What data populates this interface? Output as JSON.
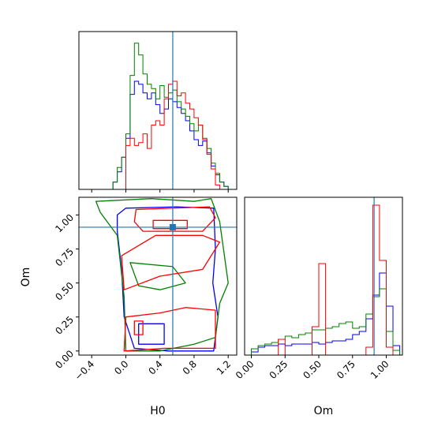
{
  "chart_data": {
    "type": "corner",
    "parameters": [
      "H0",
      "Om"
    ],
    "truth": {
      "H0": 0.55,
      "Om": 0.91
    },
    "colors": {
      "blue": "#0000ff",
      "green": "#008000",
      "red": "#ff0000",
      "truth": "#1f77b4"
    },
    "panels": [
      {
        "id": "h0-hist",
        "type": "histogram",
        "xlim": [
          -0.55,
          1.3
        ],
        "edges": [
          -0.45,
          -0.4,
          -0.35,
          -0.3,
          -0.25,
          -0.2,
          -0.15,
          -0.1,
          -0.05,
          0.0,
          0.05,
          0.1,
          0.15,
          0.2,
          0.25,
          0.3,
          0.35,
          0.4,
          0.45,
          0.5,
          0.55,
          0.6,
          0.65,
          0.7,
          0.75,
          0.8,
          0.85,
          0.9,
          0.95,
          1.0,
          1.05,
          1.1,
          1.15,
          1.2,
          1.25
        ],
        "series": [
          {
            "color": "blue",
            "counts": [
              0,
              0,
              0,
              0,
              0,
              0,
              0.05,
              0.12,
              0.22,
              0.35,
              0.65,
              0.74,
              0.72,
              0.66,
              0.62,
              0.66,
              0.58,
              0.52,
              0.55,
              0.62,
              0.6,
              0.56,
              0.52,
              0.47,
              0.4,
              0.34,
              0.3,
              0.33,
              0.25,
              0.16,
              0.1,
              0.05,
              0.02,
              0
            ]
          },
          {
            "color": "green",
            "counts": [
              0,
              0,
              0,
              0,
              0,
              0,
              0.05,
              0.15,
              0.22,
              0.38,
              0.78,
              1.0,
              0.92,
              0.79,
              0.72,
              0.69,
              0.62,
              0.71,
              0.63,
              0.66,
              0.68,
              0.6,
              0.55,
              0.5,
              0.45,
              0.4,
              0.44,
              0.35,
              0.28,
              0.18,
              0.11,
              0.05,
              0.02,
              0
            ]
          },
          {
            "color": "red",
            "counts": [
              0,
              0,
              0,
              0,
              0,
              0,
              0,
              0,
              0,
              0.3,
              0.35,
              0.3,
              0.32,
              0.38,
              0.28,
              0.44,
              0.47,
              0.44,
              0.62,
              0.72,
              0.74,
              0.64,
              0.66,
              0.59,
              0.55,
              0.49,
              0.44,
              0.34,
              0.24,
              0.14,
              0.03,
              0,
              0,
              0
            ]
          }
        ]
      },
      {
        "id": "contour",
        "type": "contour",
        "xlim": [
          -0.55,
          1.3
        ],
        "ylim": [
          -0.03,
          1.13
        ],
        "xlabel": "H0",
        "ylabel": "Om",
        "xticks": [
          "−0.4",
          "0.0",
          "0.4",
          "0.8",
          "1.2"
        ],
        "xtick_values": [
          -0.4,
          0.0,
          0.4,
          0.8,
          1.2
        ],
        "yticks": [
          "0.00",
          "0.25",
          "0.50",
          "0.75",
          "1.00"
        ],
        "ytick_values": [
          0.0,
          0.25,
          0.5,
          0.75,
          1.0
        ],
        "contours": [
          {
            "color": "blue",
            "points": [
              [
                0.0,
                1.05
              ],
              [
                0.6,
                1.06
              ],
              [
                1.03,
                1.05
              ],
              [
                1.05,
                0.75
              ],
              [
                1.02,
                0.5
              ],
              [
                1.08,
                0.25
              ],
              [
                1.03,
                0.0
              ],
              [
                0.5,
                0.0
              ],
              [
                0.1,
                0.02
              ],
              [
                -0.02,
                0.25
              ],
              [
                -0.05,
                0.6
              ],
              [
                -0.1,
                0.88
              ],
              [
                -0.1,
                1.0
              ]
            ]
          },
          {
            "color": "blue",
            "points": [
              [
                0.15,
                0.05
              ],
              [
                0.45,
                0.05
              ],
              [
                0.45,
                0.2
              ],
              [
                0.15,
                0.2
              ]
            ]
          },
          {
            "color": "green",
            "points": [
              [
                -0.35,
                1.1
              ],
              [
                0.3,
                1.12
              ],
              [
                0.8,
                1.1
              ],
              [
                1.0,
                1.12
              ],
              [
                1.1,
                0.95
              ],
              [
                1.2,
                0.5
              ],
              [
                1.1,
                0.35
              ],
              [
                1.05,
                0.1
              ],
              [
                0.8,
                0.05
              ],
              [
                0.4,
                0.0
              ],
              [
                0.0,
                0.0
              ],
              [
                -0.02,
                0.4
              ],
              [
                -0.1,
                0.85
              ],
              [
                -0.3,
                1.02
              ]
            ]
          },
          {
            "color": "green",
            "points": [
              [
                0.05,
                0.65
              ],
              [
                0.55,
                0.62
              ],
              [
                0.7,
                0.5
              ],
              [
                0.4,
                0.45
              ],
              [
                0.15,
                0.48
              ]
            ]
          },
          {
            "color": "red",
            "points": [
              [
                0.12,
                1.04
              ],
              [
                0.98,
                1.06
              ],
              [
                1.05,
                0.98
              ],
              [
                0.9,
                0.88
              ],
              [
                0.2,
                0.88
              ],
              [
                0.1,
                0.95
              ]
            ]
          },
          {
            "color": "red",
            "points": [
              [
                0.32,
                0.96
              ],
              [
                0.72,
                0.96
              ],
              [
                0.72,
                0.9
              ],
              [
                0.32,
                0.9
              ]
            ]
          },
          {
            "color": "red",
            "points": [
              [
                -0.02,
                0.45
              ],
              [
                0.4,
                0.55
              ],
              [
                0.9,
                0.6
              ],
              [
                1.1,
                0.8
              ],
              [
                0.9,
                0.85
              ],
              [
                0.35,
                0.85
              ],
              [
                -0.05,
                0.7
              ]
            ]
          },
          {
            "color": "red",
            "points": [
              [
                -0.02,
                0.0
              ],
              [
                0.45,
                0.02
              ],
              [
                1.05,
                0.02
              ],
              [
                1.05,
                0.3
              ],
              [
                0.7,
                0.32
              ],
              [
                0.4,
                0.28
              ],
              [
                0.0,
                0.25
              ]
            ]
          },
          {
            "color": "red",
            "points": [
              [
                0.1,
                0.12
              ],
              [
                0.2,
                0.12
              ],
              [
                0.2,
                0.22
              ],
              [
                0.1,
                0.22
              ]
            ]
          }
        ]
      },
      {
        "id": "om-hist",
        "type": "histogram",
        "xlim": [
          -0.05,
          1.12
        ],
        "xlabel": "Om",
        "xticks": [
          "0.00",
          "0.25",
          "0.50",
          "0.75",
          "1.00"
        ],
        "xtick_values": [
          0.0,
          0.25,
          0.5,
          0.75,
          1.0
        ],
        "edges": [
          0.0,
          0.05,
          0.1,
          0.15,
          0.2,
          0.25,
          0.3,
          0.35,
          0.4,
          0.45,
          0.5,
          0.55,
          0.6,
          0.65,
          0.7,
          0.75,
          0.8,
          0.85,
          0.9,
          0.95,
          1.0,
          1.05,
          1.1
        ],
        "series": [
          {
            "color": "blue",
            "counts": [
              0.02,
              0.05,
              0.06,
              0.06,
              0.07,
              0.06,
              0.07,
              0.07,
              0.07,
              0.08,
              0.07,
              0.08,
              0.09,
              0.09,
              0.1,
              0.13,
              0.15,
              0.23,
              0.38,
              0.52,
              0.31,
              0.06
            ]
          },
          {
            "color": "green",
            "counts": [
              0.04,
              0.06,
              0.07,
              0.08,
              0.1,
              0.12,
              0.11,
              0.13,
              0.14,
              0.16,
              0.16,
              0.17,
              0.18,
              0.2,
              0.21,
              0.17,
              0.18,
              0.26,
              0.37,
              0.42,
              0.15,
              0.03
            ]
          },
          {
            "color": "red",
            "counts": [
              0,
              0,
              0,
              0,
              0.1,
              0,
              0,
              0,
              0,
              0.18,
              0.58,
              0,
              0,
              0,
              0,
              0,
              0,
              0.05,
              0.95,
              0.6,
              0.05,
              0
            ]
          }
        ]
      }
    ]
  }
}
